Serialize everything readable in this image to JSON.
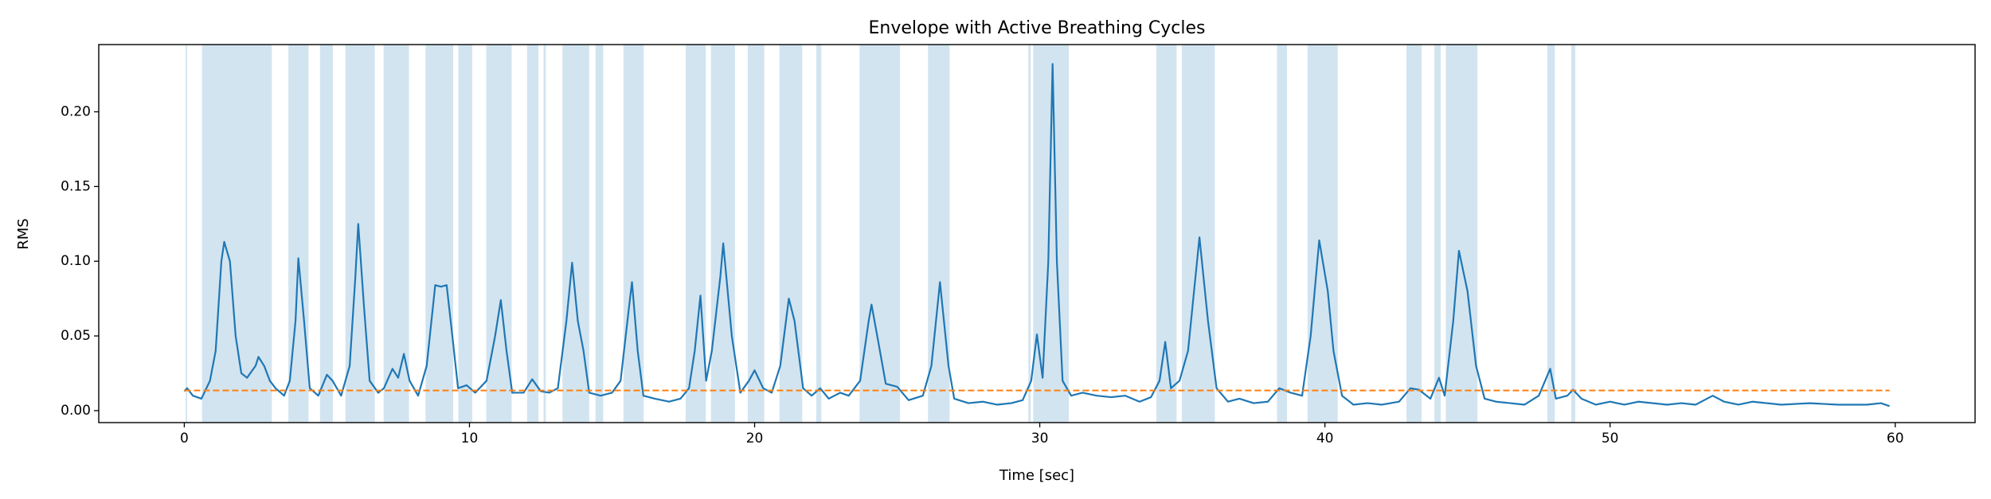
{
  "chart_data": {
    "type": "line",
    "title": "Envelope with Active Breathing Cycles",
    "xlabel": "Time [sec]",
    "ylabel": "RMS",
    "xlim": [
      -3,
      62.8
    ],
    "ylim": [
      -0.008,
      0.245
    ],
    "xticks": [
      0,
      10,
      20,
      30,
      40,
      50,
      60
    ],
    "yticks": [
      {
        "value": 0,
        "label": "0.00"
      },
      0.05,
      {
        "value": 0.1,
        "label": "0.10"
      },
      0.15,
      {
        "value": 0.2,
        "label": "0.20"
      }
    ],
    "span_color": "#1f77b4",
    "spans": [
      [
        0.05,
        0.1
      ],
      [
        0.62,
        3.07
      ],
      [
        3.65,
        4.36
      ],
      [
        4.76,
        5.21
      ],
      [
        5.65,
        6.68
      ],
      [
        6.99,
        7.88
      ],
      [
        8.46,
        9.43
      ],
      [
        9.61,
        10.1
      ],
      [
        10.59,
        11.48
      ],
      [
        12.02,
        12.42
      ],
      [
        12.6,
        12.68
      ],
      [
        13.26,
        14.2
      ],
      [
        14.42,
        14.69
      ],
      [
        15.4,
        16.11
      ],
      [
        17.58,
        18.29
      ],
      [
        18.47,
        19.31
      ],
      [
        19.76,
        20.34
      ],
      [
        20.87,
        21.67
      ],
      [
        22.16,
        22.34
      ],
      [
        23.68,
        25.1
      ],
      [
        26.08,
        26.84
      ],
      [
        29.6,
        29.68
      ],
      [
        29.77,
        31.02
      ],
      [
        34.09,
        34.8
      ],
      [
        34.98,
        36.14
      ],
      [
        38.32,
        38.67
      ],
      [
        39.39,
        40.45
      ],
      [
        42.86,
        43.39
      ],
      [
        43.84,
        44.06
      ],
      [
        44.24,
        45.35
      ],
      [
        47.8,
        48.06
      ],
      [
        48.64,
        48.78
      ]
    ],
    "series": [
      {
        "color": "#1f77b4",
        "style": "solid",
        "x": [
          0,
          0.1,
          0.3,
          0.6,
          0.9,
          1.1,
          1.3,
          1.4,
          1.6,
          1.8,
          2.0,
          2.2,
          2.5,
          2.6,
          2.8,
          3.0,
          3.2,
          3.5,
          3.7,
          3.9,
          4.0,
          4.2,
          4.4,
          4.7,
          5.0,
          5.2,
          5.5,
          5.8,
          6.0,
          6.1,
          6.3,
          6.5,
          6.8,
          7.0,
          7.3,
          7.5,
          7.7,
          7.9,
          8.2,
          8.5,
          8.8,
          9.0,
          9.2,
          9.4,
          9.6,
          9.9,
          10.2,
          10.6,
          10.9,
          11.1,
          11.3,
          11.5,
          11.9,
          12.2,
          12.5,
          12.8,
          13.1,
          13.4,
          13.6,
          13.8,
          14.0,
          14.2,
          14.6,
          15.0,
          15.3,
          15.6,
          15.7,
          15.9,
          16.1,
          16.5,
          17.0,
          17.4,
          17.7,
          17.9,
          18.1,
          18.3,
          18.5,
          18.8,
          18.9,
          19.2,
          19.5,
          19.8,
          20.0,
          20.3,
          20.6,
          20.9,
          21.2,
          21.4,
          21.7,
          22.0,
          22.3,
          22.6,
          23.0,
          23.3,
          23.7,
          24.0,
          24.1,
          24.3,
          24.6,
          25.0,
          25.4,
          25.9,
          26.2,
          26.5,
          26.8,
          27.0,
          27.5,
          28.0,
          28.5,
          29.0,
          29.4,
          29.7,
          29.9,
          30.1,
          30.3,
          30.45,
          30.6,
          30.8,
          31.1,
          31.5,
          32.0,
          32.5,
          33.0,
          33.5,
          33.9,
          34.2,
          34.4,
          34.6,
          34.9,
          35.2,
          35.6,
          35.9,
          36.2,
          36.6,
          37.0,
          37.5,
          38.0,
          38.4,
          38.8,
          39.2,
          39.5,
          39.8,
          40.1,
          40.3,
          40.6,
          41.0,
          41.5,
          42.0,
          42.6,
          43.0,
          43.3,
          43.7,
          44.0,
          44.2,
          44.5,
          44.7,
          45.0,
          45.3,
          45.6,
          46.0,
          46.5,
          47.0,
          47.5,
          47.9,
          48.1,
          48.5,
          48.7,
          49.0,
          49.5,
          50.0,
          50.5,
          51.0,
          52.0,
          52.5,
          53.0,
          53.6,
          54.0,
          54.5,
          55.0,
          56.0,
          57.0,
          58.0,
          59.0,
          59.5,
          59.8
        ],
        "values": [
          0.013,
          0.015,
          0.01,
          0.008,
          0.02,
          0.04,
          0.1,
          0.113,
          0.1,
          0.05,
          0.025,
          0.022,
          0.03,
          0.036,
          0.03,
          0.02,
          0.015,
          0.01,
          0.02,
          0.06,
          0.102,
          0.06,
          0.015,
          0.01,
          0.024,
          0.02,
          0.01,
          0.03,
          0.09,
          0.125,
          0.07,
          0.02,
          0.012,
          0.015,
          0.028,
          0.022,
          0.038,
          0.02,
          0.01,
          0.03,
          0.084,
          0.083,
          0.084,
          0.05,
          0.015,
          0.017,
          0.012,
          0.02,
          0.05,
          0.074,
          0.04,
          0.012,
          0.012,
          0.021,
          0.013,
          0.012,
          0.015,
          0.06,
          0.099,
          0.06,
          0.04,
          0.012,
          0.01,
          0.012,
          0.02,
          0.07,
          0.086,
          0.04,
          0.01,
          0.008,
          0.006,
          0.008,
          0.015,
          0.04,
          0.077,
          0.02,
          0.04,
          0.09,
          0.112,
          0.05,
          0.012,
          0.02,
          0.027,
          0.015,
          0.012,
          0.03,
          0.075,
          0.06,
          0.015,
          0.01,
          0.015,
          0.008,
          0.012,
          0.01,
          0.02,
          0.06,
          0.071,
          0.05,
          0.018,
          0.016,
          0.007,
          0.01,
          0.03,
          0.086,
          0.03,
          0.008,
          0.005,
          0.006,
          0.004,
          0.005,
          0.007,
          0.02,
          0.051,
          0.022,
          0.1,
          0.232,
          0.1,
          0.02,
          0.01,
          0.012,
          0.01,
          0.009,
          0.01,
          0.006,
          0.009,
          0.02,
          0.046,
          0.015,
          0.02,
          0.04,
          0.116,
          0.06,
          0.015,
          0.006,
          0.008,
          0.005,
          0.006,
          0.015,
          0.012,
          0.01,
          0.05,
          0.114,
          0.08,
          0.04,
          0.01,
          0.004,
          0.005,
          0.004,
          0.006,
          0.015,
          0.014,
          0.008,
          0.022,
          0.01,
          0.06,
          0.107,
          0.08,
          0.03,
          0.008,
          0.006,
          0.005,
          0.004,
          0.01,
          0.028,
          0.008,
          0.01,
          0.014,
          0.008,
          0.004,
          0.006,
          0.004,
          0.006,
          0.004,
          0.005,
          0.004,
          0.01,
          0.006,
          0.004,
          0.006,
          0.004,
          0.005,
          0.004,
          0.004,
          0.005,
          0.003
        ]
      },
      {
        "color": "#ff7f0e",
        "style": "dashed",
        "x": [
          0,
          59.8
        ],
        "values": [
          0.0135,
          0.0135
        ]
      }
    ]
  }
}
